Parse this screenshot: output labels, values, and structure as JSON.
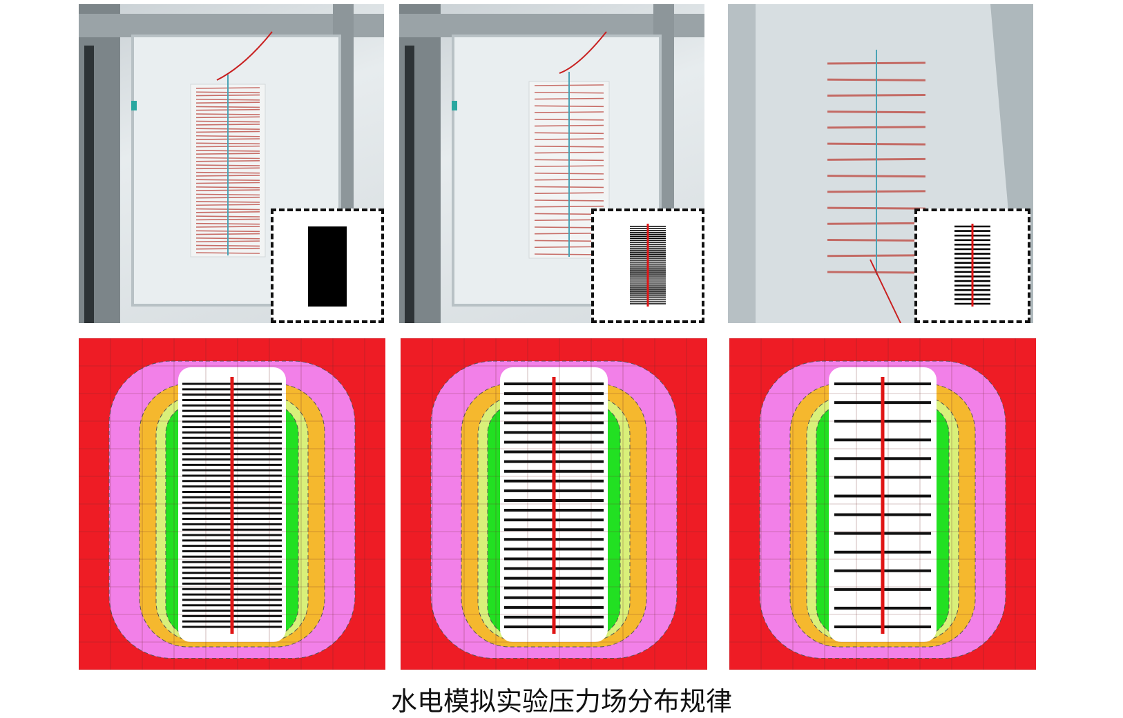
{
  "caption": "水电模拟实验压力场分布规律",
  "colors": {
    "outer": "#ee1c25",
    "pink": "#f280e8",
    "orange": "#f5b82e",
    "yellowgreen": "#d9f07a",
    "green": "#22e022",
    "inner": "#ffffff",
    "electrode": "#111111",
    "center": "#e01515"
  },
  "panels": [
    {
      "name": "dense",
      "rows": 46
    },
    {
      "name": "medium",
      "rows": 26
    },
    {
      "name": "sparse",
      "rows": 14
    }
  ]
}
